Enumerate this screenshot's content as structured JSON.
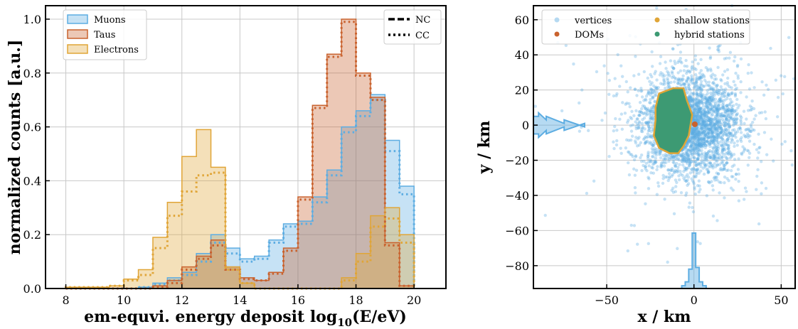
{
  "colors": {
    "muons": "#5DADE2",
    "taus": "#C9622E",
    "electrons": "#E0A537",
    "hybrid": "#3D9A73"
  },
  "chart_data": [
    {
      "type": "histogram",
      "xlabel_main": "em-equvi. energy deposit log",
      "xlabel_sub": "10",
      "xlabel_tail": "(E/eV)",
      "ylabel": "normalized counts [a.u.]",
      "xlim": [
        7.3,
        21.1
      ],
      "ylim": [
        0,
        1.05
      ],
      "xticks": [
        "8",
        "10",
        "12",
        "14",
        "16",
        "18",
        "20"
      ],
      "xtick_values": [
        8,
        10,
        12,
        14,
        16,
        18,
        20
      ],
      "yticks": [
        "0.0",
        "0.2",
        "0.4",
        "0.6",
        "0.8",
        "1.0"
      ],
      "ytick_values": [
        0.0,
        0.2,
        0.4,
        0.6,
        0.8,
        1.0
      ],
      "grid": true,
      "legend_flavour": {
        "placement": "top-left",
        "entries": [
          "Muons",
          "Taus",
          "Electrons"
        ]
      },
      "legend_interaction": {
        "placement": "top-right",
        "entries": [
          "NC",
          "CC"
        ]
      },
      "bin_edges": [
        8.0,
        8.5,
        9.0,
        9.5,
        10.0,
        10.5,
        11.0,
        11.5,
        12.0,
        12.5,
        13.0,
        13.5,
        14.0,
        14.5,
        15.0,
        15.5,
        16.0,
        16.5,
        17.0,
        17.5,
        18.0,
        18.5,
        19.0,
        19.5,
        20.0
      ],
      "series": [
        {
          "name": "Muons",
          "interaction": "NC",
          "values": [
            0.0,
            0.0,
            0.0,
            0.0,
            0.0,
            0.005,
            0.02,
            0.04,
            0.06,
            0.13,
            0.2,
            0.15,
            0.11,
            0.12,
            0.18,
            0.24,
            0.25,
            0.34,
            0.44,
            0.6,
            0.66,
            0.72,
            0.55,
            0.38
          ]
        },
        {
          "name": "Muons",
          "interaction": "CC",
          "values": [
            0.0,
            0.0,
            0.0,
            0.0,
            0.0,
            0.005,
            0.015,
            0.03,
            0.05,
            0.1,
            0.17,
            0.13,
            0.1,
            0.11,
            0.17,
            0.23,
            0.24,
            0.32,
            0.42,
            0.58,
            0.64,
            0.7,
            0.51,
            0.35
          ]
        },
        {
          "name": "Taus",
          "interaction": "NC",
          "values": [
            0.0,
            0.0,
            0.0,
            0.0,
            0.0,
            0.0,
            0.01,
            0.03,
            0.08,
            0.12,
            0.18,
            0.08,
            0.04,
            0.03,
            0.06,
            0.15,
            0.34,
            0.68,
            0.87,
            1.0,
            0.8,
            0.71,
            0.17,
            0.01
          ]
        },
        {
          "name": "Taus",
          "interaction": "CC",
          "values": [
            0.0,
            0.0,
            0.0,
            0.0,
            0.0,
            0.0,
            0.005,
            0.02,
            0.07,
            0.11,
            0.16,
            0.07,
            0.035,
            0.03,
            0.055,
            0.14,
            0.33,
            0.67,
            0.86,
            0.99,
            0.79,
            0.7,
            0.16,
            0.01
          ]
        },
        {
          "name": "Electrons",
          "interaction": "NC",
          "values": [
            0.005,
            0.005,
            0.005,
            0.01,
            0.035,
            0.07,
            0.19,
            0.32,
            0.49,
            0.59,
            0.45,
            0.08,
            0.02,
            0.0,
            0.0,
            0.0,
            0.0,
            0.0,
            0.0,
            0.04,
            0.13,
            0.27,
            0.3,
            0.2
          ]
        },
        {
          "name": "Electrons",
          "interaction": "CC",
          "values": [
            0.005,
            0.005,
            0.005,
            0.01,
            0.03,
            0.05,
            0.15,
            0.27,
            0.36,
            0.42,
            0.43,
            0.07,
            0.02,
            0.0,
            0.0,
            0.0,
            0.0,
            0.0,
            0.0,
            0.03,
            0.1,
            0.23,
            0.26,
            0.17
          ]
        }
      ]
    },
    {
      "type": "scatter",
      "xlabel": "x / km",
      "ylabel": "y / km",
      "xlim": [
        -92,
        58
      ],
      "ylim": [
        -93,
        68
      ],
      "xticks": [
        "−50",
        "0",
        "50"
      ],
      "xtick_values": [
        -50,
        0,
        50
      ],
      "yticks": [
        "60",
        "40",
        "20",
        "0",
        "−20",
        "−40",
        "−60",
        "−80"
      ],
      "ytick_values": [
        60,
        40,
        20,
        0,
        -20,
        -40,
        -60,
        -80
      ],
      "grid": true,
      "legend": {
        "placement": "top",
        "entries": [
          "vertices",
          "DOMs",
          "shallow stations",
          "hybrid stations"
        ]
      },
      "vertices": {
        "center": [
          -2,
          0
        ],
        "spread": [
          14,
          14
        ],
        "count": 3000
      },
      "doms": {
        "center": [
          0.5,
          0.5
        ]
      },
      "stations_outline": [
        [
          -20,
          18
        ],
        [
          -12,
          21
        ],
        [
          -6,
          21
        ],
        [
          -4,
          14
        ],
        [
          -1,
          6
        ],
        [
          -2,
          0
        ],
        [
          -3,
          -6
        ],
        [
          -6,
          -12
        ],
        [
          -9,
          -16
        ],
        [
          -14,
          -16
        ],
        [
          -20,
          -13
        ],
        [
          -23,
          -6
        ],
        [
          -22,
          3
        ],
        [
          -22,
          10
        ],
        [
          -20,
          18
        ]
      ],
      "marginal_x": {
        "bins": [
          -6,
          -4,
          -2,
          0,
          2,
          4,
          6
        ],
        "values": [
          0.05,
          0.12,
          0.35,
          1.0,
          0.38,
          0.12,
          0.05
        ]
      },
      "marginal_y": {
        "bins": [
          -6,
          -4,
          -2,
          0,
          2,
          4,
          6
        ],
        "values": [
          0.1,
          0.25,
          0.6,
          1.0,
          0.6,
          0.25,
          0.1
        ]
      }
    }
  ]
}
